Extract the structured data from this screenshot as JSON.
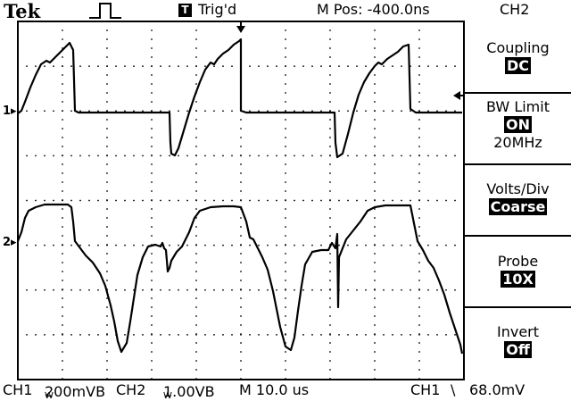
{
  "header": {
    "brand": "Tek",
    "trigger_status": "Trig'd",
    "trigger_icon_letter": "T",
    "position": "M Pos: -400.0ns",
    "channel": "CH2"
  },
  "menu": [
    {
      "title": "Coupling",
      "value": "DC"
    },
    {
      "title": "BW Limit",
      "value": "ON",
      "extra": "20MHz"
    },
    {
      "title": "Volts/Div",
      "value": "Coarse"
    },
    {
      "title": "Probe",
      "value": "10X"
    },
    {
      "title": "Invert",
      "value": "Off"
    }
  ],
  "footer": {
    "ch1_label": "CH1",
    "ch1_scale": "200mVB",
    "ch1_bw_subscript": "W",
    "ch2_label": "CH2",
    "ch2_scale": "1.00VB",
    "ch2_bw_subscript": "W",
    "timebase": "M 10.0 us",
    "trigger_source": "CH1",
    "trigger_slope": "\\",
    "trigger_level": "68.0mV"
  },
  "markers": {
    "ch1": "1",
    "ch2": "2"
  },
  "colors": {
    "background": "#ffffff",
    "trace": "#000000",
    "menu_highlight": "#000000"
  }
}
